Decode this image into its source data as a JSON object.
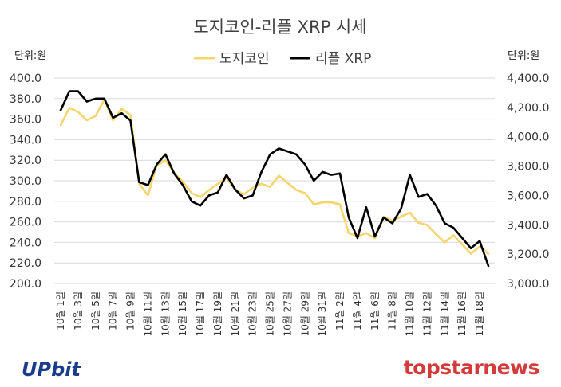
{
  "chart_data": {
    "type": "line",
    "title": "도지코인-리플 XRP 시세",
    "left_unit": "단위:원",
    "right_unit": "단위:원",
    "legend_position": "top-center",
    "categories": [
      "10월 1일",
      "10월 2일",
      "10월 3일",
      "10월 4일",
      "10월 5일",
      "10월 6일",
      "10월 7일",
      "10월 8일",
      "10월 9일",
      "10월 10일",
      "10월 11일",
      "10월 12일",
      "10월 13일",
      "10월 14일",
      "10월 15일",
      "10월 16일",
      "10월 17일",
      "10월 18일",
      "10월 19일",
      "10월 20일",
      "10월 21일",
      "10월 22일",
      "10월 23일",
      "10월 24일",
      "10월 25일",
      "10월 26일",
      "10월 27일",
      "10월 28일",
      "10월 29일",
      "10월 30일",
      "10월 31일",
      "11월 1일",
      "11월 2일",
      "11월 3일",
      "11월 4일",
      "11월 5일",
      "11월 6일",
      "11월 7일",
      "11월 8일",
      "11월 9일",
      "11월 10일",
      "11월 11일",
      "11월 12일",
      "11월 13일",
      "11월 14일",
      "11월 15일",
      "11월 16일",
      "11월 17일",
      "11월 18일",
      "11월 19일"
    ],
    "x_tick_labels": [
      "10월 1일",
      "10월 3일",
      "10월 5일",
      "10월 7일",
      "10월 9일",
      "10월 11일",
      "10월 13일",
      "10월 15일",
      "10월 17일",
      "10월 19일",
      "10월 21일",
      "10월 23일",
      "10월 25일",
      "10월 27일",
      "10월 29일",
      "10월 31일",
      "11월 2일",
      "11월 4일",
      "11월 6일",
      "11월 8일",
      "11월 10일",
      "11월 12일",
      "11월 14일",
      "11월 16일",
      "11월 18일"
    ],
    "y_left": {
      "min": 200,
      "max": 400,
      "step": 20,
      "tick_labels": [
        "200.0",
        "220.0",
        "240.0",
        "260.0",
        "280.0",
        "300.0",
        "320.0",
        "340.0",
        "360.0",
        "380.0",
        "400.0"
      ]
    },
    "y_right": {
      "min": 3000,
      "max": 4400,
      "step": 200,
      "tick_labels": [
        "3,000.0",
        "3,200.0",
        "3,400.0",
        "3,600.0",
        "3,800.0",
        "4,000.0",
        "4,200.0",
        "4,400.0"
      ]
    },
    "series": [
      {
        "name": "도지코인",
        "axis": "left",
        "color": "#f6d46e",
        "values": [
          354,
          371,
          367,
          359,
          363,
          379,
          359,
          370,
          364,
          297,
          286,
          315,
          320,
          308,
          299,
          288,
          284,
          291,
          297,
          303,
          291,
          287,
          293,
          297,
          294,
          305,
          298,
          291,
          288,
          277,
          279,
          279,
          277,
          249,
          246,
          249,
          244,
          265,
          261,
          265,
          269,
          259,
          257,
          248,
          240,
          247,
          238,
          229,
          236,
          229
        ]
      },
      {
        "name": "리플 XRP",
        "axis": "right",
        "color": "#000000",
        "values": [
          4180,
          4310,
          4310,
          4240,
          4260,
          4260,
          4130,
          4160,
          4110,
          3690,
          3670,
          3810,
          3880,
          3750,
          3670,
          3560,
          3530,
          3600,
          3620,
          3740,
          3640,
          3580,
          3600,
          3760,
          3880,
          3920,
          3900,
          3880,
          3810,
          3700,
          3760,
          3740,
          3750,
          3450,
          3310,
          3520,
          3320,
          3450,
          3410,
          3510,
          3740,
          3590,
          3610,
          3530,
          3410,
          3380,
          3310,
          3240,
          3290,
          3120
        ]
      }
    ]
  },
  "logos": {
    "upbit": "UPbit",
    "topstarnews": "topstarnews",
    "colors": {
      "upbit": "#1b3c8c",
      "topstarnews": "#d43a3a"
    }
  }
}
